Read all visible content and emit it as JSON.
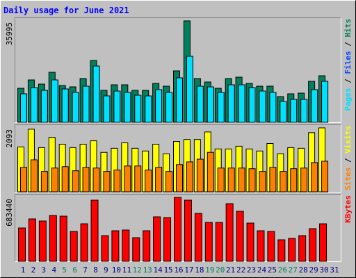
{
  "chart_data": [
    {
      "type": "bar",
      "title": "Daily usage for June 2021",
      "categories": [
        "1",
        "2",
        "3",
        "4",
        "5",
        "6",
        "7",
        "8",
        "9",
        "10",
        "11",
        "12",
        "13",
        "14",
        "15",
        "16",
        "17",
        "18",
        "19",
        "20",
        "21",
        "22",
        "23",
        "24",
        "25",
        "26",
        "27",
        "28",
        "29",
        "30",
        "31"
      ],
      "category_colors": [
        "#000080",
        "#000080",
        "#000080",
        "#000080",
        "#008060",
        "#008060",
        "#000080",
        "#000080",
        "#000080",
        "#000080",
        "#000080",
        "#008060",
        "#008060",
        "#000080",
        "#000080",
        "#000080",
        "#000080",
        "#000080",
        "#008060",
        "#008060",
        "#000080",
        "#000080",
        "#000080",
        "#000080",
        "#000080",
        "#008060",
        "#008060",
        "#000080",
        "#000080",
        "#000080",
        "#000080"
      ],
      "legend_separator": " / ",
      "series": [
        {
          "name": "Hits",
          "color": "#00805c",
          "values": [
            12080,
            15039,
            13560,
            17751,
            13067,
            12573,
            15532,
            21942,
            11341,
            13313,
            13313,
            11341,
            11341,
            13806,
            12820,
            18244,
            35995,
            15532,
            14299,
            12080,
            15532,
            16025,
            13806,
            12820,
            12820,
            9122,
            10108,
            10355,
            14546,
            16518,
            null
          ]
        },
        {
          "name": "Files",
          "color": "#0040ff",
          "values": [
            10107,
            12327,
            11341,
            15039,
            11834,
            10601,
            12820,
            19970,
            9369,
            11094,
            10601,
            9615,
            9369,
            11587,
            10601,
            15779,
            23422,
            12820,
            12573,
            10601,
            13313,
            13313,
            12327,
            11094,
            10601,
            7396,
            8136,
            8136,
            11587,
            14546,
            null
          ]
        },
        {
          "name": "Pages",
          "color": "#00e0ff",
          "values": [
            10107,
            12327,
            11341,
            15039,
            11834,
            10601,
            12820,
            19970,
            9369,
            11094,
            10601,
            9615,
            9369,
            11587,
            10601,
            15779,
            23422,
            12820,
            12573,
            10601,
            13313,
            13313,
            12327,
            11094,
            10601,
            7396,
            8136,
            8136,
            11587,
            14546,
            null
          ]
        }
      ],
      "ylim": [
        0,
        35995
      ],
      "yticks": [
        35995
      ]
    },
    {
      "type": "bar",
      "series": [
        {
          "name": "Visits",
          "color": "#ffff00",
          "values": [
            1470,
            2049,
            1447,
            1781,
            1559,
            1447,
            1559,
            1670,
            1291,
            1425,
            1603,
            1425,
            1336,
            1559,
            1247,
            1648,
            1714,
            1714,
            1959,
            1403,
            1403,
            1492,
            1403,
            1336,
            1581,
            1247,
            1447,
            1425,
            1937,
            2093,
            null
          ]
        },
        {
          "name": "Sites",
          "color": "#ff8000",
          "values": [
            802,
            1047,
            668,
            779,
            824,
            690,
            802,
            779,
            668,
            713,
            846,
            846,
            713,
            802,
            668,
            891,
            980,
            1069,
            1292,
            779,
            779,
            779,
            757,
            668,
            802,
            668,
            757,
            779,
            958,
            1002,
            null
          ]
        }
      ],
      "ylim": [
        0,
        2093
      ],
      "yticks": [
        2093
      ]
    },
    {
      "type": "bar",
      "series": [
        {
          "name": "KBytes",
          "color": "#ff0000",
          "values": [
            356592,
            453169,
            430882,
            490314,
            482885,
            319447,
            401166,
            653752,
            274873,
            326876,
            334305,
            252586,
            326876,
            475456,
            468027,
            683440,
            653752,
            512601,
            416024,
            416024,
            616607,
            534888,
            408595,
            326876,
            319447,
            230299,
            245157,
            274873,
            349163,
            401166,
            null
          ]
        }
      ],
      "ylim": [
        0,
        683440
      ],
      "yticks": [
        683440
      ]
    }
  ]
}
